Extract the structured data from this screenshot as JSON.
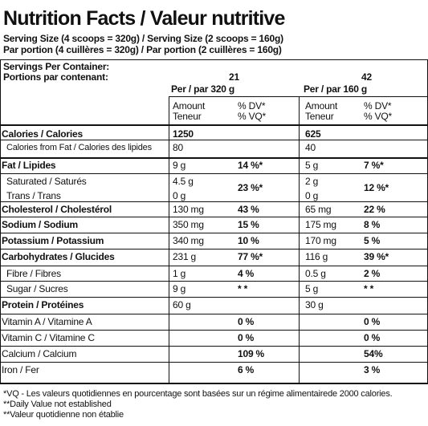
{
  "title": "Nutrition Facts / Valeur nutritive",
  "serving": [
    "Serving Size (4 scoops = 320g) / Serving Size (2 scoops = 160g)",
    "Par portion (4 cuillères = 320g) / Par portion (2 cuillères = 160g)"
  ],
  "servings_label": [
    "Servings Per Container:",
    "Portions par contenant:"
  ],
  "columns": [
    {
      "count": "21",
      "per": "Per / par  320 g",
      "amount_header": [
        "Amount",
        "Teneur"
      ],
      "dv_header": [
        "% DV*",
        "% VQ*"
      ]
    },
    {
      "count": "42",
      "per": "Per / par  160 g",
      "amount_header": [
        "Amount",
        "Teneur"
      ],
      "dv_header": [
        "% DV*",
        "% VQ*"
      ]
    }
  ],
  "rows": [
    {
      "label": "Calories / Calories",
      "bold": true,
      "cells": [
        {
          "amount": "1250"
        },
        {
          "amount": "625"
        }
      ]
    },
    {
      "label": "Calories from Fat / Calories des lipides",
      "indent": true,
      "cells": [
        {
          "amount": "80"
        },
        {
          "amount": "40"
        }
      ]
    },
    {
      "label": "Fat / Lipides",
      "bold": true,
      "cells": [
        {
          "amount": "9 g",
          "dv": "14 %*"
        },
        {
          "amount": "5 g",
          "dv": "7 %*"
        }
      ]
    },
    {
      "label": "Saturated / Saturés",
      "indent": true,
      "cells": [
        {
          "amount": "4.5 g",
          "dv": "23 %*"
        },
        {
          "amount": "2 g",
          "dv": "12 %*"
        }
      ]
    },
    {
      "label": "Trans / Trans",
      "indent": true,
      "cells": [
        {
          "amount": "0 g"
        },
        {
          "amount": "0 g"
        }
      ]
    },
    {
      "label": "Cholesterol / Cholestérol",
      "bold": true,
      "cells": [
        {
          "amount": "130 mg",
          "dv": "43 %"
        },
        {
          "amount": "65 mg",
          "dv": "22 %"
        }
      ]
    },
    {
      "label": "Sodium / Sodium",
      "bold": true,
      "cells": [
        {
          "amount": "350 mg",
          "dv": "15 %"
        },
        {
          "amount": "175 mg",
          "dv": "8 %"
        }
      ]
    },
    {
      "label": "Potassium / Potassium",
      "bold": true,
      "cells": [
        {
          "amount": "340 mg",
          "dv": "10 %"
        },
        {
          "amount": "170 mg",
          "dv": "5 %"
        }
      ]
    },
    {
      "label": "Carbohydrates / Glucides",
      "bold": true,
      "cells": [
        {
          "amount": "231 g",
          "dv": "77 %*"
        },
        {
          "amount": "116 g",
          "dv": "39 %*"
        }
      ]
    },
    {
      "label": "Fibre / Fibres",
      "indent": true,
      "cells": [
        {
          "amount": "1 g",
          "dv": "4 %"
        },
        {
          "amount": "0.5 g",
          "dv": "2 %"
        }
      ]
    },
    {
      "label": "Sugar / Sucres",
      "indent": true,
      "cells": [
        {
          "amount": "9 g",
          "dv": "* *"
        },
        {
          "amount": "5 g",
          "dv": "* *"
        }
      ]
    },
    {
      "label": "Protein / Protéines",
      "bold": true,
      "cells": [
        {
          "amount": "60 g"
        },
        {
          "amount": "30 g"
        }
      ]
    },
    {
      "label": "Vitamin A / Vitamine A",
      "cells": [
        {
          "dv": "0 %"
        },
        {
          "dv": "0 %"
        }
      ]
    },
    {
      "label": "Vitamin C / Vitamine C",
      "cells": [
        {
          "dv": "0 %"
        },
        {
          "dv": "0 %"
        }
      ]
    },
    {
      "label": "Calcium / Calcium",
      "cells": [
        {
          "dv": "109 %"
        },
        {
          "dv": "54%"
        }
      ]
    },
    {
      "label": "Iron / Fer",
      "cells": [
        {
          "dv": "6 %"
        },
        {
          "dv": "3 %"
        }
      ]
    }
  ],
  "footnotes": [
    "*VQ - Les valeurs quotidiennes en pourcentage sont basées sur un régime alimentairede 2000 calories.",
    "**Daily Value not established",
    "**Valeur quotidienne non établie"
  ]
}
